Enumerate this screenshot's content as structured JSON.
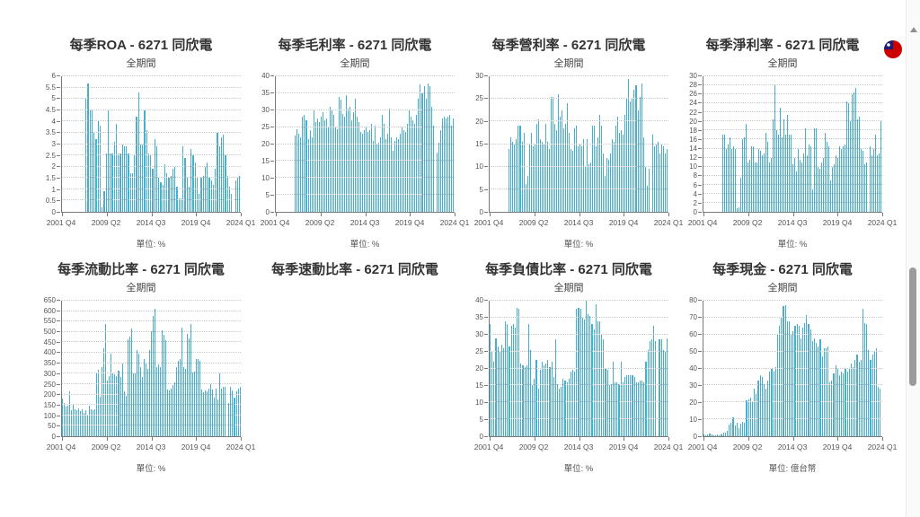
{
  "colors": {
    "bar": "#48aecb",
    "grid": "#c9c9c9",
    "axis": "#7a7a7a",
    "title": "#333333",
    "label": "#555555",
    "flag_red": "#cc0001",
    "flag_blue": "#1a1f71"
  },
  "icons": {
    "top_right": "taiwan-flag-icon",
    "scrollbar_top": "up-arrow-icon"
  },
  "charts": [
    {
      "title": "每季ROA - 6271 同欣電",
      "subtitle": "全期間",
      "unit_label": "單位: %",
      "chart_data": {
        "type": "bar",
        "title": "每季ROA - 6271 同欣電",
        "subtitle": "全期間",
        "ylabel": "%",
        "ylim": [
          0,
          6
        ],
        "ytick": 0.5,
        "grid": true,
        "xticks": [
          "2001 Q4",
          "2009 Q2",
          "2014 Q3",
          "2019 Q4",
          "2024 Q1"
        ],
        "lead_quarters": 21,
        "values": [
          5.0,
          5.7,
          4.5,
          4.5,
          3.5,
          3.2,
          4.0,
          3.8,
          0.2,
          0.9,
          2.6,
          4.5,
          2.6,
          2.6,
          3.1,
          3.9,
          2.6,
          2.6,
          3.0,
          2.9,
          2.9,
          2.6,
          1.7,
          1.7,
          2.5,
          4.2,
          5.3,
          3.0,
          3.0,
          4.5,
          3.6,
          2.6,
          2.5,
          1.9,
          3.2,
          2.9,
          1.5,
          1.3,
          1.2,
          2.1,
          1.7,
          1.5,
          1.6,
          1.9,
          2.0,
          1.1,
          0.6,
          0.6,
          2.9,
          2.4,
          1.5,
          1.1,
          2.8,
          2.5,
          2.2,
          1.5,
          0.8,
          1.5,
          1.6,
          2.0,
          2.2,
          1.5,
          1.4,
          1.2,
          1.9,
          3.5,
          2.9,
          3.3,
          3.4,
          2.5,
          1.6,
          1.1,
          0.8,
          null,
          1.4,
          1.5,
          1.6
        ]
      }
    },
    {
      "title": "每季毛利率 - 6271 同欣電",
      "subtitle": "全期間",
      "unit_label": "單位: %",
      "chart_data": {
        "type": "bar",
        "title": "每季毛利率 - 6271 同欣電",
        "subtitle": "全期間",
        "ylabel": "%",
        "ylim": [
          0,
          40
        ],
        "ytick": 5,
        "grid": true,
        "xticks": [
          "2001 Q4",
          "2009 Q2",
          "2014 Q3",
          "2019 Q4",
          "2024 Q1"
        ],
        "lead_quarters": 21,
        "values": [
          22.5,
          24.5,
          23,
          22,
          28,
          28.5,
          27,
          21.5,
          24,
          22,
          30,
          26.5,
          27.5,
          26.5,
          28,
          29.5,
          27,
          27.5,
          25,
          31,
          30,
          28.5,
          25,
          24.5,
          34,
          33,
          29,
          28,
          34.5,
          30.5,
          31,
          27,
          29.5,
          33.5,
          28,
          26.5,
          23.5,
          23,
          24,
          25,
          23.5,
          24,
          26,
          21,
          25.5,
          20,
          20.5,
          22,
          28.5,
          26,
          21.5,
          23,
          30.5,
          22,
          18,
          21,
          22,
          21.5,
          23,
          25,
          24,
          23.5,
          26,
          30,
          28,
          27,
          26,
          28.5,
          33.5,
          37.5,
          35,
          37,
          33.5,
          38,
          37,
          31,
          25.5,
          null,
          17.5,
          20.5,
          24,
          27.5,
          28,
          27.5,
          28,
          28.5,
          25.5,
          27.5
        ]
      }
    },
    {
      "title": "每季營利率 - 6271 同欣電",
      "subtitle": "全期間",
      "unit_label": "單位: %",
      "chart_data": {
        "type": "bar",
        "title": "每季營利率 - 6271 同欣電",
        "subtitle": "全期間",
        "ylabel": "%",
        "ylim": [
          0,
          30
        ],
        "ytick": 5,
        "grid": true,
        "xticks": [
          "2001 Q4",
          "2009 Q2",
          "2014 Q3",
          "2019 Q4",
          "2024 Q1"
        ],
        "lead_quarters": 21,
        "values": [
          14,
          16.5,
          15.5,
          15,
          16,
          19,
          19,
          15.5,
          17.5,
          6.2,
          8,
          15,
          17.5,
          14.5,
          15,
          19.5,
          20.5,
          16,
          15.5,
          15,
          19.5,
          15.5,
          14,
          25.5,
          25.5,
          19.5,
          18,
          26,
          21,
          22.5,
          18.5,
          19.5,
          24,
          17.5,
          14,
          13.5,
          18.5,
          19,
          14.5,
          15,
          14.5,
          16,
          10,
          16,
          10.5,
          11,
          19,
          19,
          14.5,
          16.5,
          21.5,
          19,
          13,
          8,
          12,
          11.5,
          13,
          16,
          15.5,
          19,
          21,
          17.5,
          18,
          17,
          21.5,
          25,
          29.5,
          24.5,
          25,
          27,
          28,
          22.5,
          25.5,
          28.5,
          16.5,
          10,
          5.8,
          9.5,
          null,
          17,
          14.5,
          15,
          15.5,
          13,
          15,
          14.5,
          13,
          14
        ]
      }
    },
    {
      "title": "每季淨利率 - 6271 同欣電",
      "subtitle": "全期間",
      "unit_label": "單位: %",
      "chart_data": {
        "type": "bar",
        "title": "每季淨利率 - 6271 同欣電",
        "subtitle": "全期間",
        "ylabel": "%",
        "ylim": [
          0,
          30
        ],
        "ytick": 2,
        "grid": true,
        "xticks": [
          "2001 Q4",
          "2009 Q2",
          "2014 Q3",
          "2019 Q4",
          "2024 Q1"
        ],
        "lead_quarters": 21,
        "values": [
          17,
          17,
          14,
          15,
          16.5,
          14,
          14.5,
          14,
          0.7,
          1,
          7.5,
          16,
          16.5,
          19.5,
          11,
          11.5,
          14.5,
          14.5,
          11,
          11,
          14,
          13.5,
          12.5,
          13,
          17.5,
          15.5,
          11,
          12,
          20.5,
          28,
          18,
          17,
          23,
          16.5,
          20.5,
          17,
          21.5,
          17,
          17,
          10.5,
          12,
          9,
          14,
          11.5,
          11,
          13,
          18.5,
          12.5,
          15,
          14.5,
          5,
          18.5,
          18.5,
          10,
          9.5,
          11,
          12,
          17.5,
          15.5,
          14.5,
          7,
          10,
          10.5,
          12.5,
          12,
          14.5,
          14,
          14.5,
          15,
          24.5,
          24,
          20,
          26,
          26.5,
          27.5,
          20.5,
          21,
          14,
          13.5,
          10.5,
          11,
          null,
          14.5,
          12.5,
          14,
          17,
          12.5,
          13,
          20
        ]
      }
    },
    {
      "title": "每季流動比率 - 6271 同欣電",
      "subtitle": "全期間",
      "unit_label": "單位: %",
      "chart_data": {
        "type": "bar",
        "title": "每季流動比率 - 6271 同欣電",
        "subtitle": "全期間",
        "ylabel": "%",
        "ylim": [
          0,
          650
        ],
        "ytick": 50,
        "grid": true,
        "xticks": [
          "2001 Q4",
          "2009 Q2",
          "2014 Q3",
          "2019 Q4",
          "2024 Q1"
        ],
        "lead_quarters": 0,
        "values": [
          180,
          160,
          140,
          145,
          215,
          125,
          155,
          130,
          125,
          135,
          120,
          130,
          110,
          125,
          105,
          145,
          130,
          125,
          130,
          300,
          320,
          190,
          330,
          420,
          540,
          265,
          290,
          395,
          300,
          295,
          290,
          315,
          285,
          350,
          215,
          195,
          465,
          480,
          515,
          300,
          300,
          415,
          395,
          330,
          285,
          370,
          350,
          325,
          415,
          505,
          575,
          610,
          330,
          345,
          330,
          510,
          485,
          460,
          225,
          220,
          230,
          245,
          260,
          330,
          360,
          370,
          520,
          330,
          325,
          490,
          470,
          540,
          305,
          310,
          370,
          370,
          360,
          225,
          210,
          220,
          215,
          230,
          250,
          225,
          185,
          230,
          175,
          300,
          230,
          235,
          235,
          null,
          160,
          235,
          220,
          185,
          215,
          230,
          235
        ]
      }
    },
    {
      "title": "每季速動比率 - 6271 同欣電"
    },
    {
      "title": "每季負債比率 - 6271 同欣電",
      "subtitle": "全期間",
      "unit_label": "單位: %",
      "chart_data": {
        "type": "bar",
        "title": "每季負債比率 - 6271 同欣電",
        "subtitle": "全期間",
        "ylabel": "%",
        "ylim": [
          0,
          40
        ],
        "ytick": 5,
        "grid": true,
        "xticks": [
          "2001 Q4",
          "2009 Q2",
          "2014 Q3",
          "2019 Q4",
          "2024 Q1"
        ],
        "lead_quarters": 0,
        "values": [
          33,
          25,
          22,
          29,
          26.5,
          25,
          27,
          26,
          34,
          33,
          26.5,
          32.5,
          33,
          32,
          38,
          37.5,
          21.5,
          21,
          20.5,
          21,
          33,
          25.5,
          15,
          17,
          22.5,
          14,
          19.5,
          22,
          21,
          21.5,
          22.5,
          20.5,
          22,
          17.5,
          28.5,
          15.5,
          14,
          14.5,
          17,
          16.5,
          16,
          17,
          19,
          19.5,
          19,
          37.5,
          38,
          37.5,
          35,
          34.5,
          40,
          36,
          35.5,
          33,
          31.5,
          39,
          34,
          34,
          30,
          28.5,
          20,
          19.5,
          15,
          15.5,
          22,
          16,
          16,
          15.5,
          22,
          16,
          17.5,
          18,
          18,
          18,
          18,
          17.5,
          16,
          16,
          16.5,
          16.5,
          16,
          22,
          25.5,
          28,
          28.5,
          32.5,
          28,
          null,
          28.5,
          28.5,
          25.5,
          25,
          29
        ]
      }
    },
    {
      "title": "每季現金 - 6271 同欣電",
      "subtitle": "全期間",
      "unit_label": "單位: 億台幣",
      "chart_data": {
        "type": "bar",
        "title": "每季現金 - 6271 同欣電",
        "subtitle": "全期間",
        "ylabel": "億台幣",
        "ylim": [
          0,
          80
        ],
        "ytick": 10,
        "grid": true,
        "xticks": [
          "2001 Q4",
          "2009 Q2",
          "2014 Q3",
          "2019 Q4",
          "2024 Q1"
        ],
        "lead_quarters": 0,
        "values": [
          1,
          0.5,
          1,
          1.5,
          1,
          0.5,
          0.5,
          1,
          0.5,
          1,
          2,
          2,
          3,
          7,
          8,
          11,
          6.5,
          8,
          5,
          7.5,
          8.5,
          8,
          21,
          21.5,
          23,
          20,
          28,
          25,
          33,
          36,
          35,
          31,
          28,
          33,
          38,
          40,
          38,
          41,
          60,
          65,
          70,
          77,
          77.5,
          68,
          68,
          60,
          62,
          65,
          66,
          65,
          58,
          64,
          67,
          71.5,
          66,
          63,
          56,
          58,
          55,
          53,
          57,
          47,
          52,
          52,
          53,
          32,
          33,
          37,
          42,
          40,
          36,
          38,
          37,
          40,
          38,
          40,
          43,
          41,
          45,
          48,
          44,
          45,
          75,
          67,
          66,
          51,
          45,
          48,
          50,
          52,
          29,
          28
        ]
      }
    }
  ]
}
